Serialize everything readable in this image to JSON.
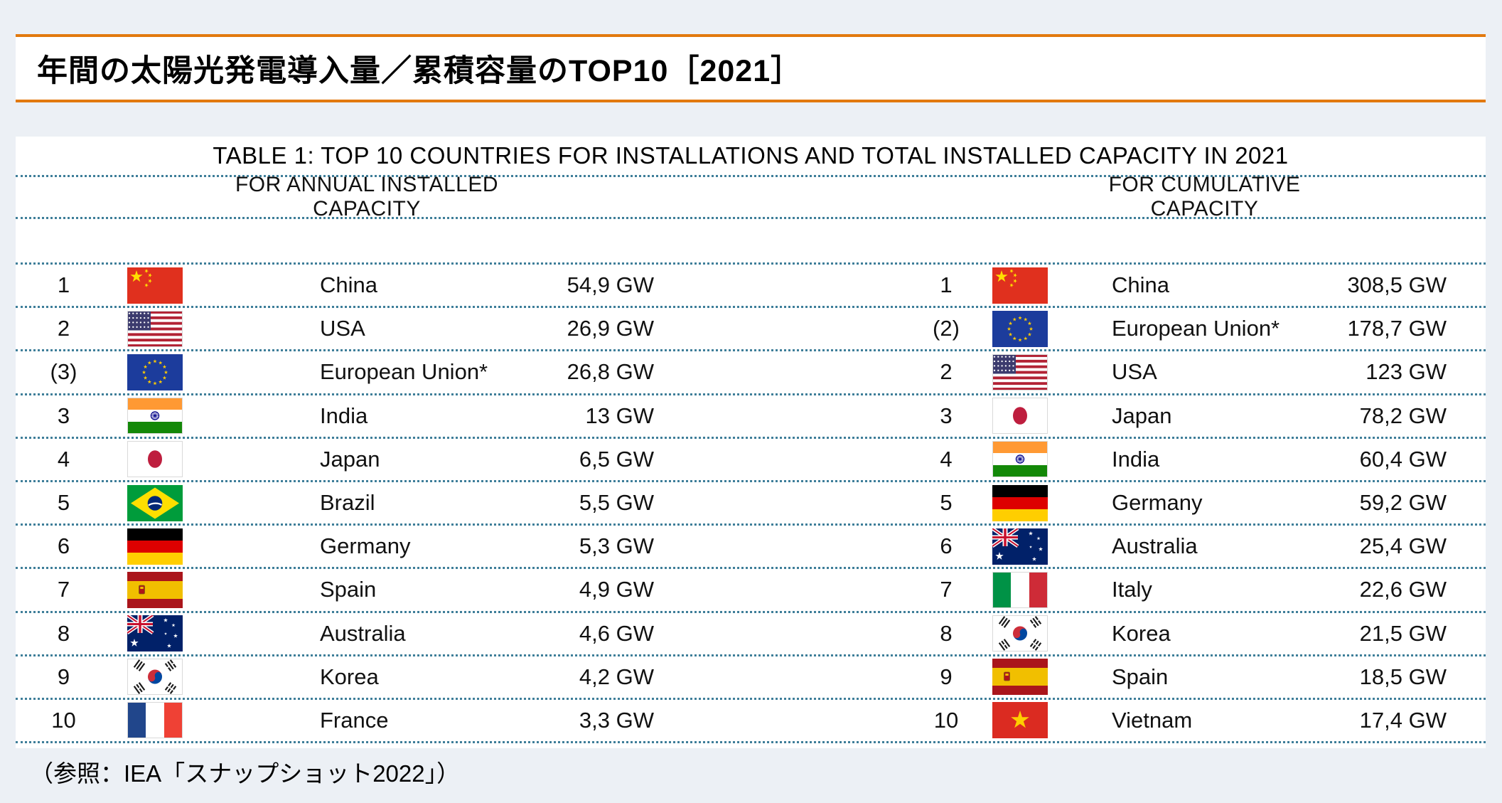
{
  "header": {
    "title": "年間の太陽光発電導入量／累積容量のTOP10［2021］"
  },
  "table": {
    "title": "TABLE 1: TOP 10 COUNTRIES FOR INSTALLATIONS AND TOTAL INSTALLED CAPACITY IN 2021",
    "left": {
      "header": "FOR ANNUAL INSTALLED CAPACITY",
      "rows": [
        {
          "rank": "1",
          "flag": "china",
          "country": "China",
          "value": "54,9 GW"
        },
        {
          "rank": "2",
          "flag": "usa",
          "country": "USA",
          "value": "26,9 GW"
        },
        {
          "rank": "(3)",
          "flag": "eu",
          "country": "European Union*",
          "value": "26,8 GW"
        },
        {
          "rank": "3",
          "flag": "india",
          "country": "India",
          "value": "13 GW"
        },
        {
          "rank": "4",
          "flag": "japan",
          "country": "Japan",
          "value": "6,5 GW"
        },
        {
          "rank": "5",
          "flag": "brazil",
          "country": "Brazil",
          "value": "5,5 GW"
        },
        {
          "rank": "6",
          "flag": "germany",
          "country": "Germany",
          "value": "5,3 GW"
        },
        {
          "rank": "7",
          "flag": "spain",
          "country": "Spain",
          "value": "4,9 GW"
        },
        {
          "rank": "8",
          "flag": "australia",
          "country": "Australia",
          "value": "4,6 GW"
        },
        {
          "rank": "9",
          "flag": "korea",
          "country": "Korea",
          "value": "4,2 GW"
        },
        {
          "rank": "10",
          "flag": "france",
          "country": "France",
          "value": "3,3 GW"
        }
      ]
    },
    "right": {
      "header": "FOR CUMULATIVE CAPACITY",
      "rows": [
        {
          "rank": "1",
          "flag": "china",
          "country": "China",
          "value": "308,5 GW"
        },
        {
          "rank": "(2)",
          "flag": "eu",
          "country": "European Union*",
          "value": "178,7 GW"
        },
        {
          "rank": "2",
          "flag": "usa",
          "country": "USA",
          "value": "123 GW"
        },
        {
          "rank": "3",
          "flag": "japan",
          "country": "Japan",
          "value": "78,2 GW"
        },
        {
          "rank": "4",
          "flag": "india",
          "country": "India",
          "value": "60,4 GW"
        },
        {
          "rank": "5",
          "flag": "germany",
          "country": "Germany",
          "value": "59,2 GW"
        },
        {
          "rank": "6",
          "flag": "australia",
          "country": "Australia",
          "value": "25,4 GW"
        },
        {
          "rank": "7",
          "flag": "italy",
          "country": "Italy",
          "value": "22,6 GW"
        },
        {
          "rank": "8",
          "flag": "korea",
          "country": "Korea",
          "value": "21,5 GW"
        },
        {
          "rank": "9",
          "flag": "spain",
          "country": "Spain",
          "value": "18,5 GW"
        },
        {
          "rank": "10",
          "flag": "vietnam",
          "country": "Vietnam",
          "value": "17,4 GW"
        }
      ]
    }
  },
  "footer": {
    "source": "（参照：IEA「スナップショット2022」）"
  },
  "colors": {
    "accent_orange": "#E2790E",
    "dotted_line": "#3E7E99",
    "background": "#ECF0F5"
  }
}
